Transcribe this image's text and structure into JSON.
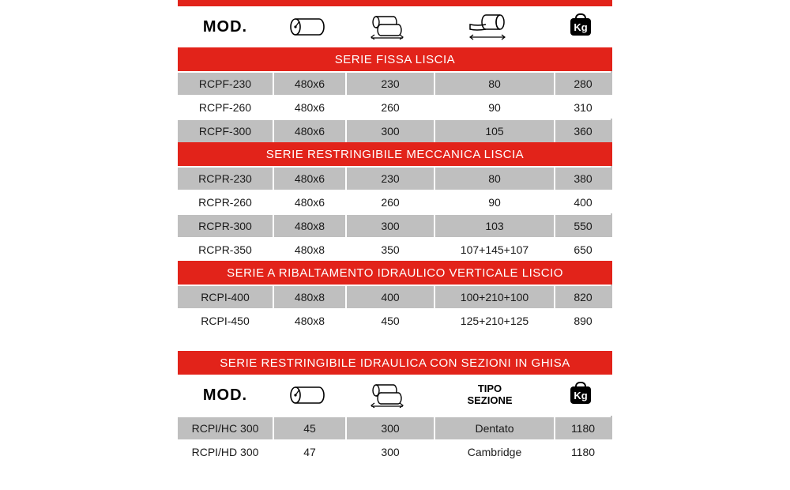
{
  "colors": {
    "red": "#e2231a",
    "grey": "#bfbfbf",
    "white": "#ffffff",
    "black": "#000000",
    "text": "#1a1a1a"
  },
  "columns": {
    "mod_label": "MOD.",
    "kg_label": "Kg",
    "tipo_sezione_label": "TIPO\nSEZIONE"
  },
  "table1": {
    "sections": [
      {
        "title": "SERIE FISSA LISCIA",
        "rows": [
          {
            "mod": "RCPF-230",
            "a": "480x6",
            "b": "230",
            "c": "80",
            "d": "280"
          },
          {
            "mod": "RCPF-260",
            "a": "480x6",
            "b": "260",
            "c": "90",
            "d": "310"
          },
          {
            "mod": "RCPF-300",
            "a": "480x6",
            "b": "300",
            "c": "105",
            "d": "360"
          }
        ]
      },
      {
        "title": "SERIE RESTRINGIBILE MECCANICA LISCIA",
        "rows": [
          {
            "mod": "RCPR-230",
            "a": "480x6",
            "b": "230",
            "c": "80",
            "d": "380"
          },
          {
            "mod": "RCPR-260",
            "a": "480x6",
            "b": "260",
            "c": "90",
            "d": "400"
          },
          {
            "mod": "RCPR-300",
            "a": "480x8",
            "b": "300",
            "c": "103",
            "d": "550"
          },
          {
            "mod": "RCPR-350",
            "a": "480x8",
            "b": "350",
            "c": "107+145+107",
            "d": "650"
          }
        ]
      },
      {
        "title": "SERIE A RIBALTAMENTO IDRAULICO VERTICALE LISCIO",
        "rows": [
          {
            "mod": "RCPI-400",
            "a": "480x8",
            "b": "400",
            "c": "100+210+100",
            "d": "820"
          },
          {
            "mod": "RCPI-450",
            "a": "480x8",
            "b": "450",
            "c": "125+210+125",
            "d": "890"
          }
        ]
      }
    ]
  },
  "table2": {
    "title": "SERIE RESTRINGIBILE IDRAULICA CON SEZIONI IN GHISA",
    "rows": [
      {
        "mod": "RCPI/HC 300",
        "a": "45",
        "b": "300",
        "c": "Dentato",
        "d": "1180"
      },
      {
        "mod": "RCPI/HD 300",
        "a": "47",
        "b": "300",
        "c": "Cambridge",
        "d": "1180"
      }
    ]
  }
}
